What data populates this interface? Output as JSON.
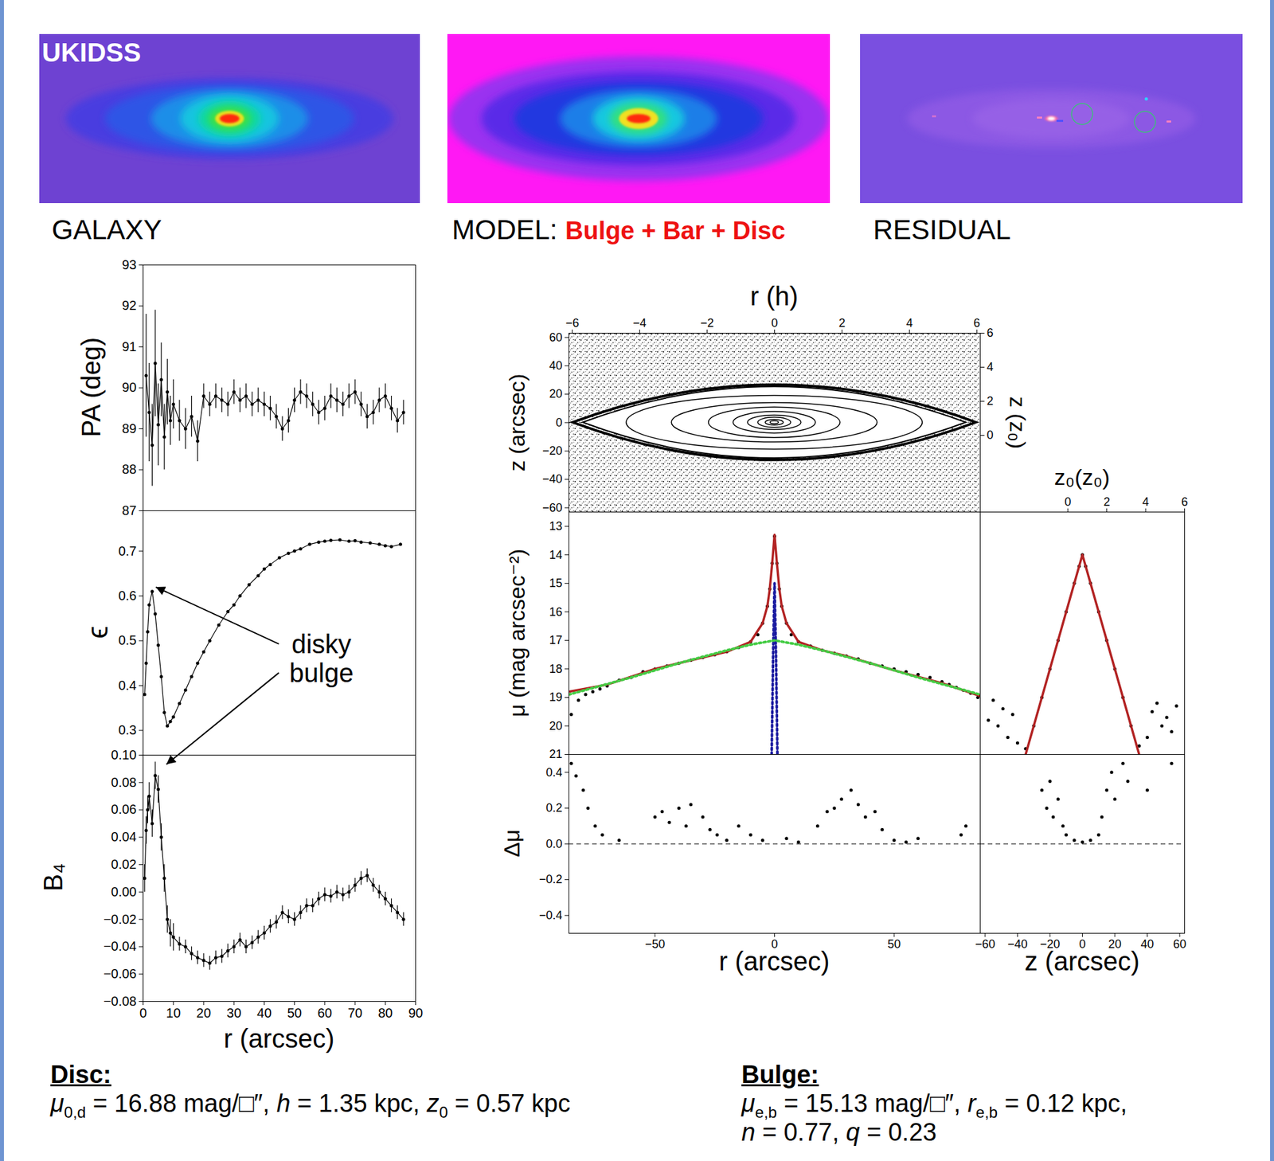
{
  "images": {
    "panels": [
      {
        "label": "GALAXY",
        "overlay": "UKIDSS"
      },
      {
        "label": "MODEL:",
        "components": "Bulge + Bar + Disc"
      },
      {
        "label": "RESIDUAL"
      }
    ]
  },
  "chart_data": [
    {
      "type": "scatter",
      "ylabel": "PA (deg)",
      "xlim": [
        0,
        90
      ],
      "ylim": [
        87,
        93
      ],
      "yticks": [
        87,
        88,
        89,
        90,
        91,
        92,
        93
      ],
      "tick_labels": "y",
      "x": [
        1,
        2,
        3,
        4,
        5,
        6,
        7,
        8,
        9,
        10,
        12,
        14,
        16,
        18,
        20,
        22,
        24,
        26,
        28,
        30,
        32,
        34,
        36,
        38,
        40,
        42,
        44,
        46,
        48,
        50,
        52,
        54,
        56,
        58,
        60,
        62,
        64,
        66,
        68,
        70,
        72,
        74,
        76,
        78,
        80,
        82,
        84,
        86
      ],
      "series": [
        {
          "color": "#000000",
          "marker": "o",
          "line_style": "solid",
          "values": [
            90.3,
            89.4,
            88.6,
            90.6,
            89.1,
            90.2,
            88.8,
            89.9,
            89.2,
            89.6,
            89.2,
            89.0,
            89.3,
            88.7,
            89.8,
            89.6,
            89.8,
            89.7,
            89.6,
            89.9,
            89.7,
            89.8,
            89.6,
            89.7,
            89.6,
            89.5,
            89.3,
            89.0,
            89.2,
            89.7,
            89.9,
            89.8,
            89.6,
            89.4,
            89.5,
            89.8,
            89.7,
            89.6,
            89.8,
            89.9,
            89.6,
            89.3,
            89.4,
            89.7,
            89.8,
            89.5,
            89.2,
            89.4
          ],
          "errors": [
            1.5,
            1.2,
            1.0,
            1.3,
            1.0,
            0.9,
            0.8,
            0.8,
            0.6,
            0.6,
            0.5,
            0.5,
            0.5,
            0.5,
            0.3,
            0.3,
            0.3,
            0.3,
            0.3,
            0.3,
            0.3,
            0.3,
            0.3,
            0.3,
            0.3,
            0.3,
            0.3,
            0.3,
            0.3,
            0.3,
            0.3,
            0.3,
            0.3,
            0.3,
            0.3,
            0.3,
            0.3,
            0.3,
            0.3,
            0.3,
            0.3,
            0.3,
            0.3,
            0.3,
            0.3,
            0.3,
            0.3,
            0.3
          ]
        }
      ]
    },
    {
      "type": "scatter",
      "ylabel": "ϵ",
      "xlim": [
        0,
        90
      ],
      "ylim": [
        0.245,
        0.79
      ],
      "yticks": [
        0.3,
        0.4,
        0.5,
        0.6,
        0.7
      ],
      "tick_labels": "y",
      "x": [
        0.5,
        1,
        1.5,
        2,
        3,
        4,
        5,
        6,
        7,
        8,
        9,
        10,
        12,
        14,
        16,
        18,
        20,
        22,
        25,
        28,
        30,
        32,
        35,
        38,
        40,
        42,
        45,
        48,
        50,
        52,
        55,
        58,
        60,
        62,
        65,
        68,
        70,
        72,
        75,
        78,
        80,
        82,
        85
      ],
      "series": [
        {
          "color": "#000000",
          "marker": "o",
          "line_style": "solid",
          "values": [
            0.38,
            0.45,
            0.52,
            0.58,
            0.61,
            0.56,
            0.49,
            0.42,
            0.34,
            0.31,
            0.32,
            0.33,
            0.36,
            0.39,
            0.42,
            0.45,
            0.475,
            0.5,
            0.535,
            0.565,
            0.58,
            0.6,
            0.625,
            0.645,
            0.66,
            0.67,
            0.685,
            0.695,
            0.7,
            0.705,
            0.715,
            0.72,
            0.722,
            0.724,
            0.725,
            0.722,
            0.723,
            0.72,
            0.718,
            0.715,
            0.712,
            0.71,
            0.715
          ]
        }
      ],
      "annotation": {
        "text": "disky bulge",
        "x": 59,
        "y": 0.46,
        "arrow_to": [
          4.3,
          0.619
        ]
      }
    },
    {
      "type": "scatter",
      "xlabel": "r (arcsec)",
      "ylabel": "B₄",
      "xlim": [
        0,
        90
      ],
      "xticks": [
        0,
        10,
        20,
        30,
        40,
        50,
        60,
        70,
        80,
        90
      ],
      "ylim": [
        -0.08,
        0.1
      ],
      "yticks": [
        {
          "value": -0.08,
          "label": "−0.08"
        },
        {
          "value": -0.06,
          "label": "−0.06"
        },
        {
          "value": -0.04,
          "label": "−0.04"
        },
        {
          "value": -0.02,
          "label": "−0.02"
        },
        {
          "value": 0,
          "label": "0.00"
        },
        0.02,
        0.04,
        0.06,
        0.08,
        {
          "value": 0.1,
          "label": "0.10"
        }
      ],
      "x": [
        0.5,
        1,
        1.5,
        2,
        3,
        4,
        5,
        6,
        7,
        8,
        9,
        10,
        12,
        14,
        16,
        18,
        20,
        22,
        24,
        26,
        28,
        30,
        32,
        34,
        36,
        38,
        40,
        42,
        44,
        46,
        48,
        50,
        52,
        54,
        56,
        58,
        60,
        62,
        64,
        66,
        68,
        70,
        72,
        74,
        76,
        78,
        80,
        82,
        84,
        86
      ],
      "series": [
        {
          "color": "#000000",
          "marker": "o",
          "line_style": "solid",
          "values": [
            0.01,
            0.045,
            0.06,
            0.07,
            0.05,
            0.085,
            0.075,
            0.04,
            0.01,
            -0.02,
            -0.03,
            -0.033,
            -0.038,
            -0.04,
            -0.045,
            -0.048,
            -0.05,
            -0.052,
            -0.048,
            -0.047,
            -0.043,
            -0.04,
            -0.035,
            -0.04,
            -0.037,
            -0.033,
            -0.03,
            -0.025,
            -0.022,
            -0.015,
            -0.018,
            -0.02,
            -0.015,
            -0.01,
            -0.01,
            -0.005,
            -0.002,
            -0.003,
            0.0,
            -0.002,
            0.0,
            0.005,
            0.01,
            0.012,
            0.005,
            0.0,
            -0.005,
            -0.01,
            -0.015,
            -0.02
          ],
          "errors": [
            0.01,
            0.01,
            0.01,
            0.01,
            0.01,
            0.01,
            0.01,
            0.01,
            0.01,
            0.01,
            0.01,
            0.01,
            0.005,
            0.005,
            0.005,
            0.005,
            0.005,
            0.005,
            0.005,
            0.005,
            0.005,
            0.005,
            0.005,
            0.005,
            0.005,
            0.005,
            0.005,
            0.005,
            0.005,
            0.005,
            0.005,
            0.005,
            0.005,
            0.005,
            0.005,
            0.005,
            0.005,
            0.005,
            0.005,
            0.005,
            0.005,
            0.005,
            0.005,
            0.005,
            0.005,
            0.005,
            0.005,
            0.005,
            0.005,
            0.005
          ]
        }
      ],
      "annotation_arrow": {
        "x": 7.8,
        "y": 0.093
      }
    },
    {
      "type": "image",
      "xlabel": "r (h)",
      "ylabel": "z (arcsec)",
      "y2label": "z (z₀)",
      "xlim": [
        -6.1,
        6.1
      ],
      "xticks": [
        {
          "value": -6,
          "label": "−6"
        },
        {
          "value": -4,
          "label": "−4"
        },
        {
          "value": -2,
          "label": "−2"
        },
        0,
        2,
        4,
        6
      ],
      "ylim": [
        -63,
        63
      ],
      "yticks": [
        {
          "value": -60,
          "label": "−60"
        },
        {
          "value": -40,
          "label": "−40"
        },
        {
          "value": -20,
          "label": "−20"
        },
        0,
        20,
        40,
        60
      ],
      "y2lim": [
        -4.5,
        6
      ],
      "y2ticks": [
        0,
        2,
        4,
        6
      ]
    },
    {
      "type": "scatter",
      "ylabel": "μ (mag arcsec⁻²)",
      "xlim": [
        -86,
        86
      ],
      "ylim": [
        21,
        12.5
      ],
      "yticks": [
        13,
        14,
        15,
        16,
        17,
        18,
        19,
        20,
        21
      ],
      "tick_labels": "y",
      "series": [
        {
          "type": "scatter",
          "color": "#000000",
          "marker": "o",
          "x": [
            -85,
            -82,
            -79,
            -76,
            -73,
            -70,
            -65,
            -60,
            -55,
            -50,
            -45,
            -40,
            -35,
            -30,
            -25,
            -20,
            -15,
            -10,
            -7,
            -5,
            -3,
            -2,
            -1,
            0,
            1,
            2,
            3,
            5,
            7,
            10,
            15,
            20,
            25,
            30,
            35,
            40,
            45,
            50,
            55,
            60,
            65,
            70,
            73,
            76,
            79,
            82,
            85
          ],
          "values": [
            19.6,
            19.1,
            18.9,
            18.8,
            18.7,
            18.6,
            18.4,
            18.3,
            18.1,
            18.0,
            17.9,
            17.8,
            17.7,
            17.6,
            17.5,
            17.4,
            17.25,
            17.05,
            16.8,
            16.4,
            15.8,
            15.2,
            14.3,
            13.35,
            14.3,
            15.2,
            15.8,
            16.4,
            16.8,
            17.05,
            17.2,
            17.35,
            17.45,
            17.55,
            17.65,
            17.8,
            17.9,
            18.0,
            18.1,
            18.2,
            18.3,
            18.45,
            18.55,
            18.65,
            18.75,
            18.85,
            19.0
          ]
        },
        {
          "type": "line",
          "color": "#b22222",
          "line_style": "solid",
          "x": [
            -86,
            -70,
            -50,
            -30,
            -20,
            -10,
            -5,
            -3,
            -2,
            -1,
            0,
            1,
            2,
            3,
            5,
            10,
            20,
            30,
            50,
            70,
            86
          ],
          "values": [
            18.8,
            18.55,
            18.0,
            17.6,
            17.4,
            17.05,
            16.4,
            15.8,
            15.2,
            14.3,
            13.3,
            14.3,
            15.2,
            15.8,
            16.4,
            17.05,
            17.35,
            17.55,
            18.05,
            18.5,
            18.95
          ]
        },
        {
          "type": "line",
          "color": "#1a1aa0",
          "line_style": "dotted",
          "x": [
            -1.2,
            -0.6,
            0,
            0.6,
            1.2
          ],
          "values": [
            21,
            17.5,
            15.0,
            17.5,
            21
          ]
        },
        {
          "type": "line",
          "color": "#44cc44",
          "line_style": "dotted",
          "x": [
            -86,
            -60,
            -40,
            -20,
            -10,
            0,
            10,
            20,
            40,
            60,
            86
          ],
          "values": [
            18.9,
            18.3,
            17.8,
            17.35,
            17.15,
            17.0,
            17.15,
            17.35,
            17.8,
            18.3,
            18.9
          ]
        }
      ]
    },
    {
      "type": "scatter",
      "x2label": "z₀(z₀)",
      "xlim": [
        -63,
        63
      ],
      "ylim": [
        21,
        12.5
      ],
      "x2lim": [
        -4.5,
        6
      ],
      "x2ticks": [
        0,
        2,
        4,
        6
      ],
      "tick_labels": false,
      "series": [
        {
          "type": "scatter",
          "color": "#000000",
          "marker": "o",
          "x": [
            -58,
            -55,
            -52,
            -49,
            -46,
            -43,
            -40,
            -35,
            -30,
            -25,
            -20,
            -15,
            -10,
            -5,
            -2,
            0,
            2,
            5,
            10,
            15,
            20,
            25,
            30,
            35,
            40,
            43,
            46,
            49,
            52,
            55,
            58
          ],
          "values": [
            19.8,
            19.1,
            20.0,
            19.4,
            20.4,
            19.6,
            20.6,
            20.8,
            20.0,
            19.0,
            18.0,
            17.0,
            16.0,
            15.0,
            14.4,
            14.0,
            14.4,
            15.0,
            16.0,
            17.0,
            18.0,
            19.0,
            20.0,
            20.7,
            20.4,
            19.5,
            19.2,
            20.0,
            19.7,
            20.2,
            19.3
          ]
        },
        {
          "type": "line",
          "color": "#b22222",
          "line_style": "solid",
          "x": [
            -35,
            0,
            35
          ],
          "values": [
            21,
            14.0,
            21
          ]
        }
      ]
    },
    {
      "type": "scatter",
      "ylabel": "Δμ",
      "xlabel": "r (arcsec)",
      "xlim": [
        -86,
        86
      ],
      "xticks": [
        {
          "value": -50,
          "label": "−50"
        },
        0,
        50
      ],
      "ylim": [
        -0.5,
        0.5
      ],
      "yticks": [
        {
          "value": -0.4,
          "label": "−0.4"
        },
        {
          "value": -0.2,
          "label": "−0.2"
        },
        {
          "value": 0,
          "label": "0.0"
        },
        0.2,
        0.4
      ],
      "hline": {
        "value": 0,
        "line_style": "dashed"
      },
      "series": [
        {
          "color": "#000000",
          "marker": "o",
          "x": [
            -85,
            -83,
            -80,
            -78,
            -75,
            -72,
            -65,
            -50,
            -47,
            -44,
            -40,
            -37,
            -35,
            -30,
            -27,
            -24,
            -20,
            -15,
            -10,
            -5,
            5,
            10,
            18,
            22,
            25,
            28,
            32,
            35,
            38,
            42,
            45,
            50,
            55,
            60,
            78,
            80
          ],
          "values": [
            0.45,
            0.38,
            0.3,
            0.2,
            0.1,
            0.05,
            0.02,
            0.15,
            0.18,
            0.12,
            0.2,
            0.1,
            0.22,
            0.15,
            0.08,
            0.05,
            0.02,
            0.1,
            0.05,
            0.02,
            0.03,
            0.01,
            0.1,
            0.18,
            0.2,
            0.25,
            0.3,
            0.22,
            0.15,
            0.18,
            0.08,
            0.02,
            0.01,
            0.03,
            0.05,
            0.1
          ]
        }
      ]
    },
    {
      "type": "scatter",
      "xlabel": "z (arcsec)",
      "xlim": [
        -63,
        63
      ],
      "xticks": [
        {
          "value": -60,
          "label": "−60"
        },
        {
          "value": -40,
          "label": "−40"
        },
        {
          "value": -20,
          "label": "−20"
        },
        0,
        20,
        40,
        60
      ],
      "ylim": [
        -0.5,
        0.5
      ],
      "tick_labels": "x",
      "hline": {
        "value": 0,
        "line_style": "dashed"
      },
      "series": [
        {
          "color": "#000000",
          "marker": "o",
          "x": [
            -25,
            -22,
            -20,
            -18,
            -15,
            -12,
            -10,
            -5,
            0,
            5,
            10,
            12,
            15,
            18,
            20,
            25,
            28,
            40,
            55
          ],
          "values": [
            0.3,
            0.2,
            0.35,
            0.15,
            0.25,
            0.1,
            0.05,
            0.02,
            0.01,
            0.02,
            0.05,
            0.15,
            0.3,
            0.4,
            0.25,
            0.45,
            0.35,
            0.3,
            0.45
          ]
        }
      ]
    }
  ],
  "parameters": {
    "equals": " = ",
    "separator": ", ",
    "blocks": [
      {
        "heading": "Disc:",
        "lines": [
          [
            {
              "symbol": "μ",
              "sub": "0,d",
              "value": 16.88,
              "unit": "mag/□″"
            },
            {
              "symbol": "h",
              "value": 1.35,
              "unit": "kpc"
            },
            {
              "symbol": "z",
              "sub": "0",
              "value": 0.57,
              "unit": "kpc"
            }
          ]
        ]
      },
      {
        "heading": "Bulge:",
        "lines": [
          [
            {
              "symbol": "μ",
              "sub": "e,b",
              "value": 15.13,
              "unit": "mag/□″"
            },
            {
              "symbol": "r",
              "sub": "e,b",
              "value": 0.12,
              "unit": "kpc"
            }
          ],
          [
            {
              "symbol": "n",
              "value": 0.77
            },
            {
              "symbol": "q",
              "value": 0.23
            }
          ]
        ]
      }
    ]
  }
}
